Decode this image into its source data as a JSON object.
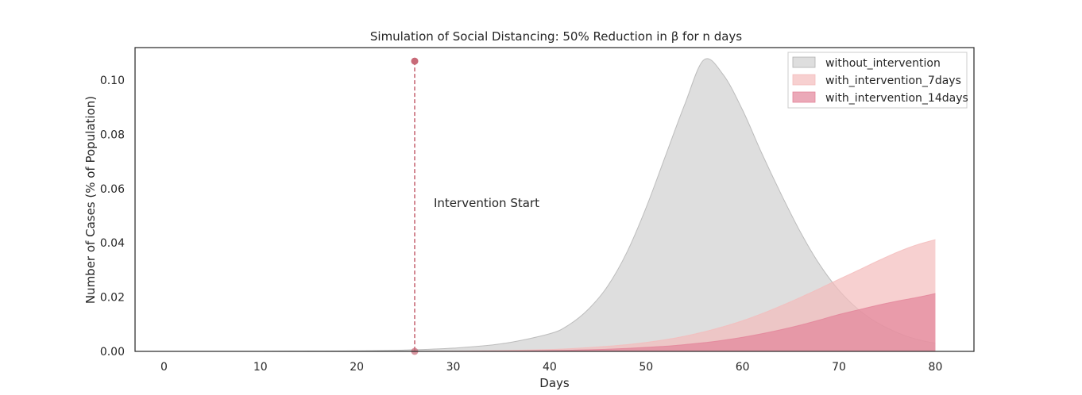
{
  "chart_data": {
    "type": "area",
    "title": "Simulation of Social Distancing: 50% Reduction in β for n days",
    "xlabel": "Days",
    "ylabel": "Number of Cases (% of Population)",
    "xlim": [
      -3,
      84
    ],
    "ylim": [
      0,
      0.112
    ],
    "xticks": [
      0,
      10,
      20,
      30,
      40,
      50,
      60,
      70,
      80
    ],
    "yticks": [
      0.0,
      0.02,
      0.04,
      0.06,
      0.08,
      0.1
    ],
    "ytick_labels": [
      "0.00",
      "0.02",
      "0.04",
      "0.06",
      "0.08",
      "0.10"
    ],
    "grid": false,
    "legend_position": "top-right",
    "x": [
      1,
      5,
      10,
      15,
      20,
      25,
      30,
      35,
      40,
      42,
      44,
      46,
      48,
      50,
      52,
      54,
      56,
      58,
      60,
      62,
      64,
      66,
      68,
      70,
      72,
      74,
      76,
      78,
      80
    ],
    "series": [
      {
        "name": "without_intervention",
        "color": "#d3d3d3",
        "edge_color": "#b0b0b0",
        "values": [
          0.0,
          0.0,
          0.0,
          0.0001,
          0.0002,
          0.0005,
          0.0012,
          0.0028,
          0.0065,
          0.0098,
          0.0155,
          0.024,
          0.0365,
          0.053,
          0.072,
          0.091,
          0.1075,
          0.102,
          0.089,
          0.073,
          0.058,
          0.044,
          0.032,
          0.0225,
          0.0155,
          0.0105,
          0.007,
          0.0045,
          0.003
        ]
      },
      {
        "name": "with_intervention_7days",
        "color": "#f4bcbc",
        "edge_color": "#f4bcbc",
        "values": [
          0.0,
          0.0,
          0.0,
          0.0,
          0.0,
          0.0,
          0.0001,
          0.0003,
          0.0007,
          0.001,
          0.0014,
          0.0019,
          0.0025,
          0.0033,
          0.0043,
          0.0056,
          0.0072,
          0.0091,
          0.0113,
          0.0139,
          0.0168,
          0.0199,
          0.0232,
          0.0266,
          0.0299,
          0.0333,
          0.0365,
          0.0392,
          0.0412
        ]
      },
      {
        "name": "with_intervention_14days",
        "color": "#e3849a",
        "edge_color": "#e3849a",
        "values": [
          0.0,
          0.0,
          0.0,
          0.0,
          0.0,
          0.0,
          0.0,
          0.0001,
          0.0003,
          0.0004,
          0.0006,
          0.0008,
          0.0011,
          0.0015,
          0.0019,
          0.0025,
          0.0032,
          0.0041,
          0.0052,
          0.0065,
          0.008,
          0.0097,
          0.0116,
          0.0136,
          0.0153,
          0.017,
          0.0185,
          0.0198,
          0.0213
        ]
      }
    ],
    "annotations": [
      {
        "type": "vertical_marker",
        "x": 26,
        "y_top": 0.107,
        "color": "#c86a78"
      },
      {
        "type": "text",
        "text": "Intervention Start",
        "x": 28,
        "y": 0.055
      }
    ]
  }
}
